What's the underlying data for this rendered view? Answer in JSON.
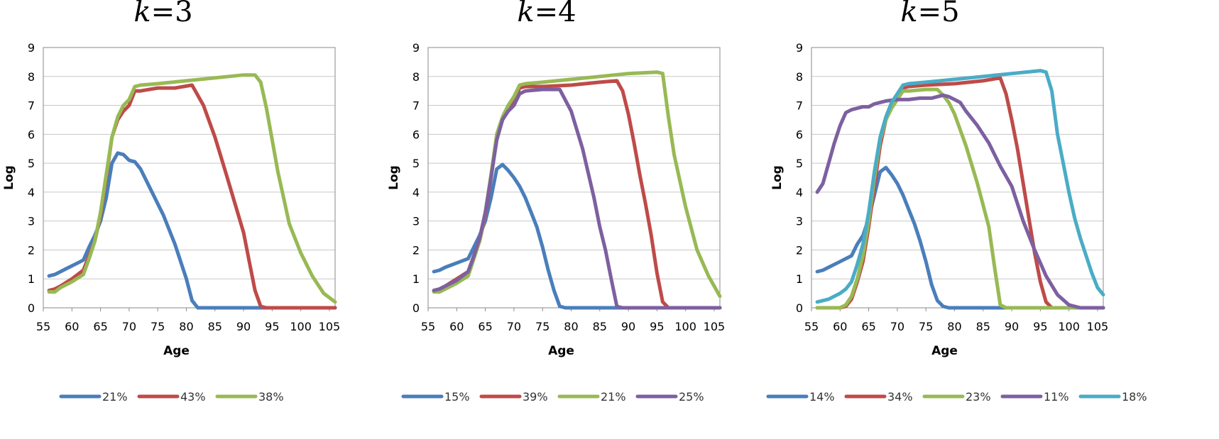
{
  "chart_data": [
    {
      "type": "line",
      "title": "k=3",
      "title_var": "k",
      "title_rest": "=3",
      "xlabel": "Age",
      "ylabel": "Log",
      "xlim": [
        55,
        106
      ],
      "ylim": [
        0,
        9
      ],
      "x_ticks": [
        55,
        60,
        65,
        70,
        75,
        80,
        85,
        90,
        95,
        100,
        105
      ],
      "y_ticks": [
        0,
        1,
        2,
        3,
        4,
        5,
        6,
        7,
        8,
        9
      ],
      "grid": "horizontal",
      "legend_position": "bottom",
      "series": [
        {
          "name": "21%",
          "color": "#4a7ebb",
          "x": [
            56,
            57,
            58,
            59,
            60,
            61,
            62,
            63,
            64,
            65,
            66,
            67,
            68,
            69,
            70,
            71,
            72,
            74,
            76,
            78,
            80,
            81,
            82,
            85,
            90,
            95,
            100,
            106
          ],
          "y": [
            1.1,
            1.15,
            1.25,
            1.35,
            1.45,
            1.55,
            1.65,
            2.1,
            2.5,
            3.0,
            3.8,
            5.0,
            5.35,
            5.3,
            5.1,
            5.05,
            4.8,
            4.0,
            3.2,
            2.2,
            1.0,
            0.25,
            0.0,
            0.0,
            0.0,
            0.0,
            0.0,
            0.0
          ]
        },
        {
          "name": "43%",
          "color": "#be4b48",
          "x": [
            56,
            57,
            58,
            60,
            62,
            63,
            64,
            65,
            66,
            67,
            68,
            69,
            70,
            71,
            72,
            75,
            78,
            81,
            83,
            85,
            87,
            90,
            91,
            92,
            93,
            94,
            95,
            100,
            106
          ],
          "y": [
            0.6,
            0.65,
            0.75,
            1.0,
            1.3,
            1.8,
            2.3,
            3.2,
            4.5,
            5.9,
            6.5,
            6.8,
            7.0,
            7.5,
            7.5,
            7.6,
            7.6,
            7.7,
            7.0,
            5.9,
            4.6,
            2.6,
            1.6,
            0.6,
            0.05,
            0.0,
            0.0,
            0.0,
            0.0
          ]
        },
        {
          "name": "38%",
          "color": "#98b954",
          "x": [
            56,
            57,
            58,
            60,
            62,
            63,
            64,
            65,
            66,
            67,
            68,
            69,
            70,
            71,
            72,
            75,
            80,
            85,
            90,
            92,
            93,
            94,
            95,
            96,
            97,
            98,
            100,
            102,
            104,
            106
          ],
          "y": [
            0.55,
            0.55,
            0.7,
            0.9,
            1.15,
            1.7,
            2.3,
            3.3,
            4.6,
            5.9,
            6.6,
            7.0,
            7.2,
            7.65,
            7.7,
            7.75,
            7.85,
            7.95,
            8.05,
            8.05,
            7.8,
            6.9,
            5.8,
            4.7,
            3.8,
            2.9,
            1.9,
            1.1,
            0.5,
            0.2
          ]
        }
      ]
    },
    {
      "type": "line",
      "title": "k=4",
      "title_var": "k",
      "title_rest": "=4",
      "xlabel": "Age",
      "ylabel": "Log",
      "xlim": [
        55,
        106
      ],
      "ylim": [
        0,
        9
      ],
      "x_ticks": [
        55,
        60,
        65,
        70,
        75,
        80,
        85,
        90,
        95,
        100,
        105
      ],
      "y_ticks": [
        0,
        1,
        2,
        3,
        4,
        5,
        6,
        7,
        8,
        9
      ],
      "grid": "horizontal",
      "legend_position": "bottom",
      "series": [
        {
          "name": "15%",
          "color": "#4a7ebb",
          "x": [
            56,
            57,
            58,
            60,
            62,
            63,
            64,
            65,
            66,
            67,
            68,
            69,
            70,
            71,
            72,
            73,
            74,
            75,
            76,
            77,
            78,
            79,
            85,
            90,
            95,
            100,
            106
          ],
          "y": [
            1.25,
            1.3,
            1.4,
            1.55,
            1.7,
            2.1,
            2.5,
            3.0,
            3.8,
            4.8,
            4.95,
            4.75,
            4.5,
            4.2,
            3.8,
            3.3,
            2.8,
            2.1,
            1.3,
            0.6,
            0.05,
            0.0,
            0.0,
            0.0,
            0.0,
            0.0,
            0.0
          ]
        },
        {
          "name": "39%",
          "color": "#be4b48",
          "x": [
            56,
            57,
            58,
            60,
            62,
            63,
            64,
            65,
            66,
            67,
            68,
            69,
            70,
            71,
            72,
            75,
            80,
            85,
            88,
            89,
            90,
            91,
            92,
            93,
            94,
            95,
            96,
            97,
            100,
            106
          ],
          "y": [
            0.6,
            0.65,
            0.75,
            1.0,
            1.25,
            1.8,
            2.3,
            3.2,
            4.5,
            5.9,
            6.5,
            6.9,
            7.1,
            7.6,
            7.65,
            7.65,
            7.7,
            7.8,
            7.85,
            7.5,
            6.7,
            5.7,
            4.6,
            3.6,
            2.5,
            1.2,
            0.2,
            0.0,
            0.0,
            0.0
          ]
        },
        {
          "name": "21%",
          "color": "#98b954",
          "x": [
            56,
            57,
            58,
            60,
            62,
            63,
            64,
            65,
            66,
            67,
            68,
            69,
            70,
            71,
            72,
            75,
            80,
            85,
            90,
            95,
            96,
            97,
            98,
            100,
            102,
            104,
            106
          ],
          "y": [
            0.55,
            0.55,
            0.65,
            0.85,
            1.1,
            1.7,
            2.3,
            3.3,
            4.6,
            6.0,
            6.6,
            7.0,
            7.3,
            7.7,
            7.75,
            7.8,
            7.9,
            8.0,
            8.1,
            8.15,
            8.1,
            6.6,
            5.3,
            3.5,
            2.0,
            1.1,
            0.4
          ]
        },
        {
          "name": "25%",
          "color": "#7d60a0",
          "x": [
            56,
            57,
            58,
            60,
            62,
            63,
            64,
            65,
            66,
            67,
            68,
            69,
            70,
            71,
            72,
            75,
            78,
            80,
            82,
            84,
            85,
            86,
            87,
            88,
            89,
            95,
            100,
            106
          ],
          "y": [
            0.6,
            0.65,
            0.75,
            0.95,
            1.25,
            1.8,
            2.4,
            3.3,
            4.5,
            5.8,
            6.5,
            6.8,
            7.0,
            7.4,
            7.5,
            7.55,
            7.55,
            6.8,
            5.5,
            3.8,
            2.8,
            2.0,
            1.0,
            0.05,
            0.0,
            0.0,
            0.0,
            0.0
          ]
        }
      ]
    },
    {
      "type": "line",
      "title": "k=5",
      "title_var": "k",
      "title_rest": "=5",
      "xlabel": "Age",
      "ylabel": "Log",
      "xlim": [
        55,
        106
      ],
      "ylim": [
        0,
        9
      ],
      "x_ticks": [
        55,
        60,
        65,
        70,
        75,
        80,
        85,
        90,
        95,
        100,
        105
      ],
      "y_ticks": [
        0,
        1,
        2,
        3,
        4,
        5,
        6,
        7,
        8,
        9
      ],
      "grid": "horizontal",
      "legend_position": "bottom",
      "series": [
        {
          "name": "14%",
          "color": "#4a7ebb",
          "x": [
            56,
            57,
            58,
            60,
            62,
            63,
            64,
            65,
            66,
            67,
            68,
            69,
            70,
            71,
            72,
            73,
            74,
            75,
            76,
            77,
            78,
            79,
            85,
            90,
            95,
            100,
            106
          ],
          "y": [
            1.25,
            1.3,
            1.4,
            1.6,
            1.8,
            2.2,
            2.5,
            3.1,
            3.9,
            4.7,
            4.85,
            4.6,
            4.3,
            3.9,
            3.4,
            2.9,
            2.3,
            1.6,
            0.8,
            0.25,
            0.05,
            0.0,
            0.0,
            0.0,
            0.0,
            0.0,
            0.0
          ]
        },
        {
          "name": "34%",
          "color": "#be4b48",
          "x": [
            56,
            58,
            60,
            61,
            62,
            63,
            64,
            65,
            66,
            67,
            68,
            69,
            70,
            71,
            72,
            75,
            80,
            85,
            88,
            89,
            90,
            91,
            92,
            93,
            94,
            95,
            96,
            97,
            100,
            106
          ],
          "y": [
            0.0,
            0.0,
            0.0,
            0.05,
            0.3,
            0.9,
            1.6,
            2.8,
            4.2,
            5.6,
            6.5,
            7.0,
            7.3,
            7.6,
            7.65,
            7.7,
            7.75,
            7.85,
            7.95,
            7.4,
            6.5,
            5.5,
            4.3,
            3.1,
            1.9,
            0.9,
            0.2,
            0.0,
            0.0,
            0.0
          ]
        },
        {
          "name": "23%",
          "color": "#98b954",
          "x": [
            56,
            58,
            60,
            61,
            62,
            63,
            64,
            65,
            66,
            67,
            68,
            69,
            70,
            71,
            72,
            75,
            77,
            78,
            79,
            80,
            82,
            84,
            86,
            87,
            88,
            89,
            95,
            100,
            106
          ],
          "y": [
            0.0,
            0.0,
            0.0,
            0.1,
            0.4,
            1.0,
            1.8,
            3.0,
            4.5,
            5.8,
            6.5,
            6.9,
            7.2,
            7.5,
            7.5,
            7.55,
            7.55,
            7.35,
            7.1,
            6.7,
            5.6,
            4.3,
            2.8,
            1.4,
            0.1,
            0.0,
            0.0,
            0.0,
            0.0
          ]
        },
        {
          "name": "11%",
          "color": "#7d60a0",
          "x": [
            56,
            57,
            58,
            59,
            60,
            61,
            62,
            63,
            64,
            65,
            66,
            68,
            70,
            72,
            74,
            76,
            77,
            78,
            79,
            80,
            81,
            82,
            84,
            86,
            88,
            90,
            92,
            94,
            96,
            98,
            100,
            102,
            104,
            106
          ],
          "y": [
            4.0,
            4.3,
            5.0,
            5.7,
            6.3,
            6.75,
            6.85,
            6.9,
            6.95,
            6.95,
            7.05,
            7.15,
            7.2,
            7.2,
            7.25,
            7.25,
            7.3,
            7.35,
            7.3,
            7.2,
            7.1,
            6.8,
            6.3,
            5.7,
            4.9,
            4.2,
            3.0,
            2.0,
            1.1,
            0.45,
            0.1,
            0.0,
            0.0,
            0.0
          ]
        },
        {
          "name": "18%",
          "color": "#4aacc6",
          "x": [
            56,
            57,
            58,
            60,
            61,
            62,
            63,
            64,
            65,
            66,
            67,
            68,
            69,
            70,
            71,
            72,
            75,
            80,
            85,
            90,
            95,
            96,
            97,
            98,
            99,
            100,
            101,
            102,
            104,
            105,
            106
          ],
          "y": [
            0.2,
            0.25,
            0.3,
            0.5,
            0.65,
            0.9,
            1.5,
            2.2,
            3.3,
            4.7,
            5.9,
            6.6,
            7.1,
            7.4,
            7.7,
            7.75,
            7.8,
            7.9,
            8.0,
            8.1,
            8.2,
            8.15,
            7.5,
            6.0,
            5.0,
            4.0,
            3.1,
            2.4,
            1.2,
            0.7,
            0.45
          ]
        }
      ]
    }
  ]
}
